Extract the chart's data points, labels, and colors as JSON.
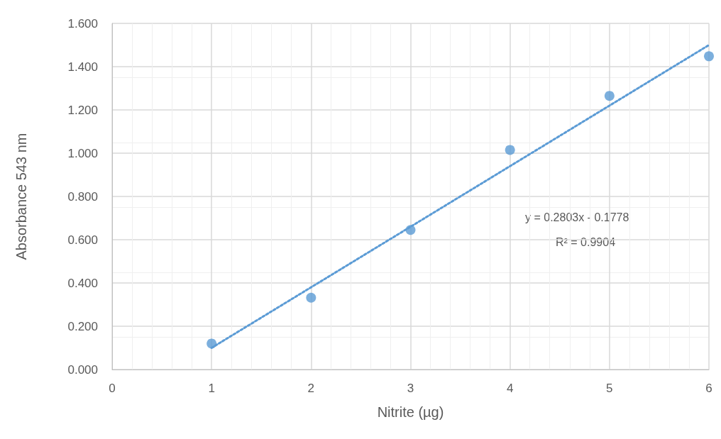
{
  "chart_data": {
    "type": "scatter",
    "xlabel": "Nitrite (µg)",
    "ylabel": "Absorbance 543 nm",
    "x": [
      1,
      2,
      3,
      4,
      5,
      6
    ],
    "series": [
      {
        "color": "#5b9bd5",
        "marker": "circle",
        "values": [
          0.12,
          0.332,
          0.645,
          1.015,
          1.265,
          1.448
        ]
      },
      {
        "type": "line",
        "color": "#5b9bd5",
        "marker": "none",
        "line_style": "dotted",
        "x": [
          1,
          6
        ],
        "values": [
          0.1,
          1.5
        ]
      }
    ],
    "xlim": [
      0,
      6
    ],
    "xticks": [
      0,
      1,
      2,
      3,
      4,
      5,
      6
    ],
    "ylim": [
      0,
      1.6
    ],
    "yticks": [
      {
        "value": 0,
        "label": "0.000"
      },
      {
        "value": 0.2,
        "label": "0.200"
      },
      {
        "value": 0.4,
        "label": "0.400"
      },
      {
        "value": 0.6,
        "label": "0.600"
      },
      {
        "value": 0.8,
        "label": "0.800"
      },
      {
        "value": 1.0,
        "label": "1.000"
      },
      {
        "value": 1.2,
        "label": "1.200"
      },
      {
        "value": 1.4,
        "label": "1.400"
      },
      {
        "value": 1.6,
        "label": "1.600"
      }
    ],
    "grid": true,
    "annotations": [
      "y = 0.2803x - 0.1778",
      "R² = 0.9904"
    ]
  }
}
